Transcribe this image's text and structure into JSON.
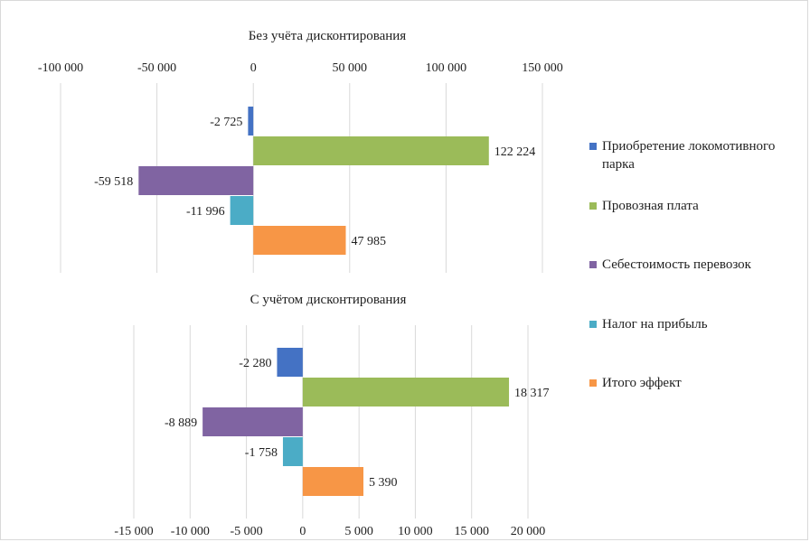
{
  "colors": {
    "acquisition": "#4472c4",
    "freight": "#9bbb59",
    "cost": "#8064a2",
    "tax": "#4bacc6",
    "total": "#f79646",
    "grid": "#d9d9d9",
    "frame": "#d9d9d9"
  },
  "legend": {
    "items": [
      {
        "key": "acquisition",
        "label": "Приобретение локомотивного парка"
      },
      {
        "key": "freight",
        "label": "Провозная плата"
      },
      {
        "key": "cost",
        "label": "Себестоимость перевозок"
      },
      {
        "key": "tax",
        "label": "Налог на прибыль"
      },
      {
        "key": "total",
        "label": "Итого эффект"
      }
    ]
  },
  "chart_data": [
    {
      "type": "bar",
      "orientation": "horizontal",
      "title": "Без учёта дисконтирования",
      "categories": [
        "Приобретение локомотивного парка",
        "Провозная плата",
        "Себестоимость перевозок",
        "Налог на прибыль",
        "Итого эффект"
      ],
      "values": [
        -2725,
        122224,
        -59518,
        -11996,
        47985
      ],
      "value_labels": [
        "-2 725",
        "122 224",
        "-59 518",
        "-11 996",
        "47 985"
      ],
      "xlim": [
        -100000,
        150000
      ],
      "ticks": [
        -100000,
        -50000,
        0,
        50000,
        100000,
        150000
      ],
      "tick_labels": [
        "-100 000",
        "-50 000",
        "0",
        "50 000",
        "100 000",
        "150 000"
      ],
      "axis_position": "top",
      "grid": true
    },
    {
      "type": "bar",
      "orientation": "horizontal",
      "title": "С учётом дисконтирования",
      "categories": [
        "Приобретение локомотивного парка",
        "Провозная плата",
        "Себестоимость перевозок",
        "Налог на прибыль",
        "Итого эффект"
      ],
      "values": [
        -2280,
        18317,
        -8889,
        -1758,
        5390
      ],
      "value_labels": [
        "-2 280",
        "18 317",
        "-8 889",
        "-1 758",
        "5 390"
      ],
      "xlim": [
        -15000,
        20000
      ],
      "ticks": [
        -15000,
        -10000,
        -5000,
        0,
        5000,
        10000,
        15000,
        20000
      ],
      "tick_labels": [
        "-15 000",
        "-10 000",
        "-5 000",
        "0",
        "5 000",
        "10 000",
        "15 000",
        "20 000"
      ],
      "axis_position": "bottom",
      "grid": true
    }
  ]
}
